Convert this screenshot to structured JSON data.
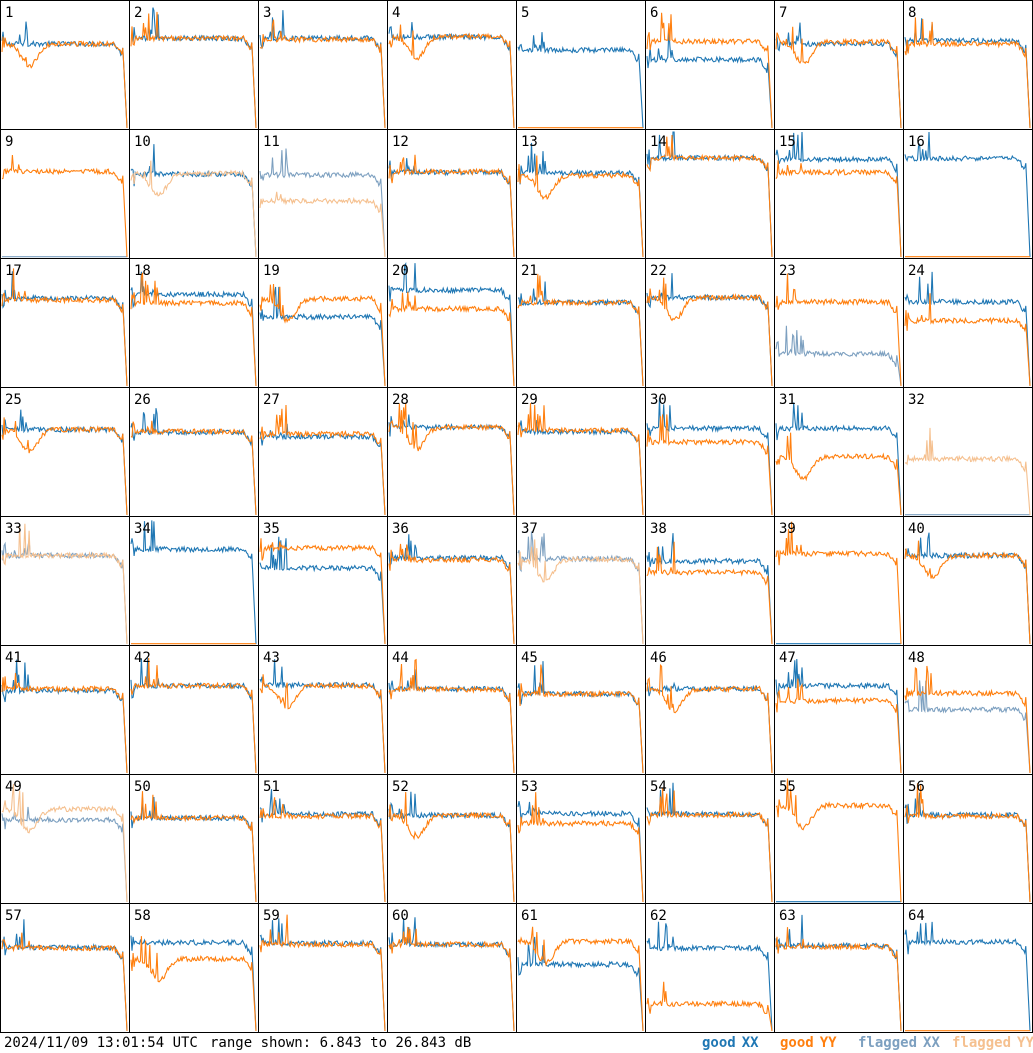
{
  "footer": {
    "timestamp": "2024/11/09 13:01:54 UTC",
    "range_text": "range shown: 6.843 to 26.843 dB"
  },
  "legend": {
    "good_word": "good",
    "flagged_word": "flagged",
    "xx": "XX",
    "yy": "YY",
    "colors": {
      "good_xx": "#1f77b4",
      "good_yy": "#ff7f0e",
      "flagged_xx": "#7da0c0",
      "flagged_yy": "#f5c08f"
    }
  },
  "chart_data": {
    "type": "line",
    "panels": 64,
    "columns": 8,
    "rows": 8,
    "ylim": [
      6.843,
      26.843
    ],
    "y_unit": "dB",
    "series": [
      "XX",
      "YY"
    ],
    "panel_labels": [
      "1",
      "2",
      "3",
      "4",
      "5",
      "6",
      "7",
      "8",
      "9",
      "10",
      "11",
      "12",
      "13",
      "14",
      "15",
      "16",
      "17",
      "18",
      "19",
      "20",
      "21",
      "22",
      "23",
      "24",
      "25",
      "26",
      "27",
      "28",
      "29",
      "30",
      "31",
      "32",
      "33",
      "34",
      "35",
      "36",
      "37",
      "38",
      "39",
      "40",
      "41",
      "42",
      "43",
      "44",
      "45",
      "46",
      "47",
      "48",
      "49",
      "50",
      "51",
      "52",
      "53",
      "54",
      "55",
      "56",
      "57",
      "58",
      "59",
      "60",
      "61",
      "62",
      "63",
      "64"
    ],
    "flagged_xx": [
      "9",
      "11",
      "23",
      "32",
      "33",
      "37",
      "48",
      "49"
    ],
    "flagged_yy": [
      "10",
      "11",
      "32",
      "33",
      "37",
      "49"
    ],
    "dead_yy": [
      "5",
      "16",
      "34",
      "64"
    ],
    "dead_xx": [
      "39",
      "55"
    ],
    "panel_levels_db": [
      {
        "xx": 20.3,
        "yy": 20.3
      },
      {
        "xx": 21.2,
        "yy": 21.2
      },
      {
        "xx": 21.2,
        "yy": 21.0
      },
      {
        "xx": 21.4,
        "yy": 21.5
      },
      {
        "xx": 19.3,
        "yy": 6.9
      },
      {
        "xx": 17.8,
        "yy": 20.7
      },
      {
        "xx": 20.3,
        "yy": 20.6
      },
      {
        "xx": 20.8,
        "yy": 20.3
      },
      {
        "xx": 7.0,
        "yy": 20.5
      },
      {
        "xx": 20.1,
        "yy": 20.2
      },
      {
        "xx": 20.0,
        "yy": 15.8
      },
      {
        "xx": 20.4,
        "yy": 20.5
      },
      {
        "xx": 20.3,
        "yy": 19.9
      },
      {
        "xx": 22.7,
        "yy": 22.7
      },
      {
        "xx": 22.5,
        "yy": 20.4
      },
      {
        "xx": 22.6,
        "yy": 6.9
      },
      {
        "xx": 20.9,
        "yy": 20.6
      },
      {
        "xx": 21.5,
        "yy": 20.1
      },
      {
        "xx": 17.9,
        "yy": 20.8
      },
      {
        "xx": 22.2,
        "yy": 19.2
      },
      {
        "xx": 20.2,
        "yy": 20.2
      },
      {
        "xx": 21.0,
        "yy": 21.0
      },
      {
        "xx": 12.0,
        "yy": 20.3
      },
      {
        "xx": 20.3,
        "yy": 17.3
      },
      {
        "xx": 20.5,
        "yy": 20.5
      },
      {
        "xx": 20.1,
        "yy": 20.2
      },
      {
        "xx": 19.4,
        "yy": 19.8
      },
      {
        "xx": 20.9,
        "yy": 20.9
      },
      {
        "xx": 20.2,
        "yy": 20.4
      },
      {
        "xx": 20.7,
        "yy": 18.5
      },
      {
        "xx": 20.7,
        "yy": 16.2
      },
      {
        "xx": 7.0,
        "yy": 15.8
      },
      {
        "xx": 21.0,
        "yy": 21.0
      },
      {
        "xx": 22.0,
        "yy": 6.9
      },
      {
        "xx": 19.0,
        "yy": 22.2
      },
      {
        "xx": 20.6,
        "yy": 20.3
      },
      {
        "xx": 20.5,
        "yy": 20.4
      },
      {
        "xx": 20.1,
        "yy": 18.3
      },
      {
        "xx": 6.9,
        "yy": 21.3
      },
      {
        "xx": 21.0,
        "yy": 21.0
      },
      {
        "xx": 20.0,
        "yy": 20.3
      },
      {
        "xx": 20.8,
        "yy": 20.8
      },
      {
        "xx": 20.9,
        "yy": 20.8
      },
      {
        "xx": 20.3,
        "yy": 20.2
      },
      {
        "xx": 19.5,
        "yy": 19.5
      },
      {
        "xx": 20.3,
        "yy": 20.3
      },
      {
        "xx": 20.8,
        "yy": 18.4
      },
      {
        "xx": 17.0,
        "yy": 19.6
      },
      {
        "xx": 20.0,
        "yy": 21.7
      },
      {
        "xx": 20.3,
        "yy": 20.3
      },
      {
        "xx": 20.9,
        "yy": 20.6
      },
      {
        "xx": 20.7,
        "yy": 20.7
      },
      {
        "xx": 21.0,
        "yy": 19.4
      },
      {
        "xx": 20.9,
        "yy": 20.8
      },
      {
        "xx": 6.9,
        "yy": 22.3
      },
      {
        "xx": 20.8,
        "yy": 20.6
      },
      {
        "xx": 20.2,
        "yy": 20.1
      },
      {
        "xx": 21.0,
        "yy": 18.4
      },
      {
        "xx": 20.9,
        "yy": 20.7
      },
      {
        "xx": 20.7,
        "yy": 20.7
      },
      {
        "xx": 17.5,
        "yy": 21.2
      },
      {
        "xx": 20.1,
        "yy": 11.2
      },
      {
        "xx": 20.5,
        "yy": 20.3
      },
      {
        "xx": 21.1,
        "yy": 6.9
      }
    ]
  }
}
